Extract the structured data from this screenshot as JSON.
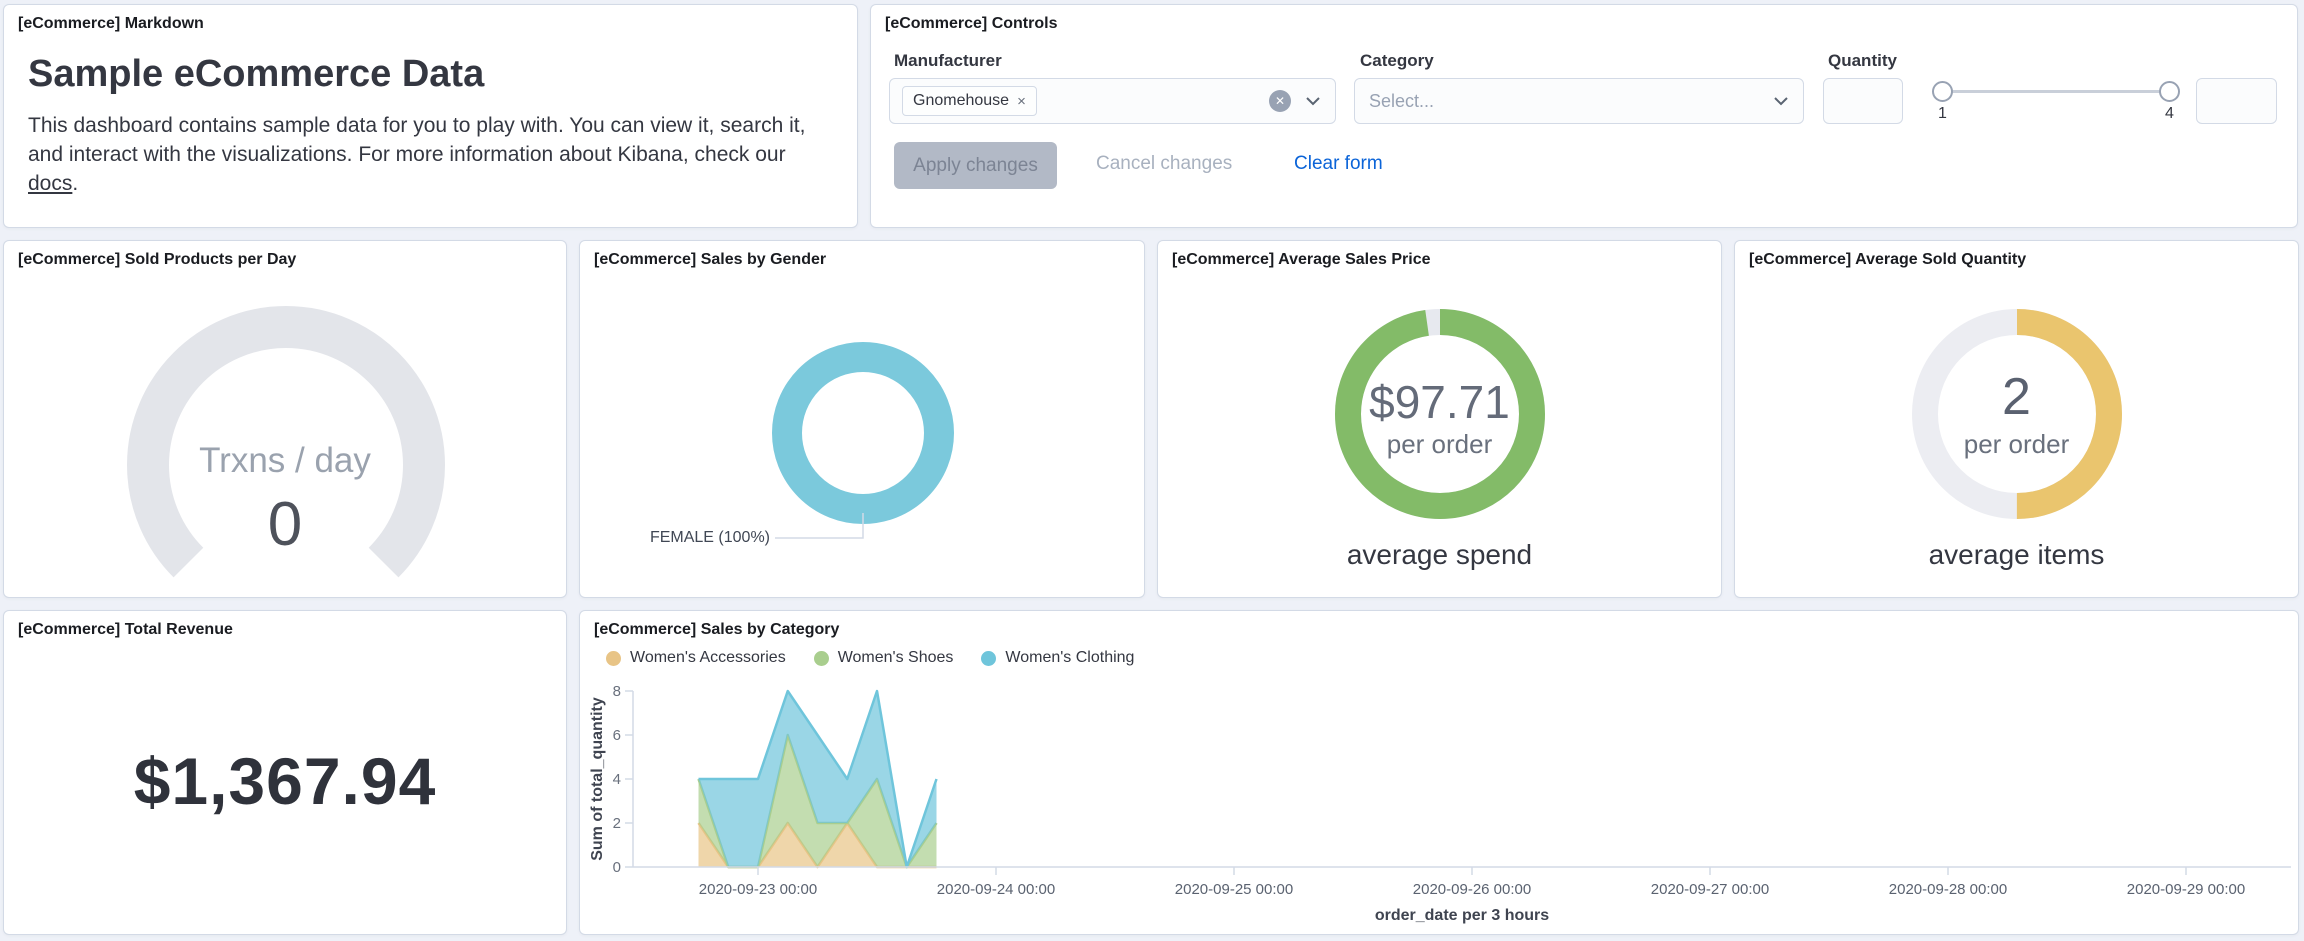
{
  "markdown": {
    "title": "[eCommerce] Markdown",
    "heading": "Sample eCommerce Data",
    "body_1": "This dashboard contains sample data for you to play with. You can view it, search it, and interact with the visualizations. For more information about Kibana, check our ",
    "link_text": "docs",
    "body_end": "."
  },
  "controls": {
    "title": "[eCommerce] Controls",
    "manufacturer": {
      "label": "Manufacturer",
      "selected": "Gnomehouse",
      "remove_icon": "×"
    },
    "category": {
      "label": "Category",
      "placeholder": "Select..."
    },
    "quantity": {
      "label": "Quantity",
      "min_label": "1",
      "max_label": "4",
      "left_value": "",
      "right_value": ""
    },
    "buttons": {
      "apply": "Apply changes",
      "cancel": "Cancel changes",
      "clear": "Clear form"
    }
  },
  "gauge": {
    "title": "[eCommerce] Sold Products per Day",
    "label": "Trxns / day",
    "value": "0",
    "arc_color": "#e3e5ea",
    "sweep_deg": 270
  },
  "gender": {
    "title": "[eCommerce] Sales by Gender",
    "slice_label": "FEMALE (100%)",
    "percent": 100,
    "color": "#7bc9dc"
  },
  "avg_price": {
    "title": "[eCommerce] Average Sales Price",
    "value": "$97.71",
    "unit": "per order",
    "caption": "average spend",
    "percent": 97.71,
    "color": "#83bb68",
    "track_color": "#e7e9ef"
  },
  "avg_qty": {
    "title": "[eCommerce] Average Sold Quantity",
    "value": "2",
    "unit": "per order",
    "caption": "average items",
    "percent": 50,
    "color": "#eac56e",
    "track_color": "#ecedf2"
  },
  "revenue": {
    "title": "[eCommerce] Total Revenue",
    "value": "$1,367.94"
  },
  "chart_data": {
    "type": "area",
    "stacked": true,
    "title": "[eCommerce] Sales by Category",
    "xlabel": "order_date per 3 hours",
    "ylabel": "Sum of total_quantity",
    "ylim": [
      0,
      8
    ],
    "yticks": [
      0,
      2,
      4,
      6,
      8
    ],
    "xticks": [
      "2020-09-23 00:00",
      "2020-09-24 00:00",
      "2020-09-25 00:00",
      "2020-09-26 00:00",
      "2020-09-27 00:00",
      "2020-09-28 00:00",
      "2020-09-29 00:00"
    ],
    "legend_position": "top",
    "grid": false,
    "x": [
      "2020-09-22 18:00",
      "2020-09-22 21:00",
      "2020-09-23 00:00",
      "2020-09-23 03:00",
      "2020-09-23 06:00",
      "2020-09-23 09:00",
      "2020-09-23 12:00",
      "2020-09-23 15:00",
      "2020-09-23 18:00"
    ],
    "series": [
      {
        "name": "Women's Accessories",
        "color": "#e8c486",
        "values": [
          2,
          0,
          0,
          2,
          0,
          2,
          0,
          0,
          0
        ]
      },
      {
        "name": "Women's Shoes",
        "color": "#a9ce8e",
        "values": [
          2,
          0,
          0,
          4,
          2,
          0,
          4,
          0,
          2
        ]
      },
      {
        "name": "Women's Clothing",
        "color": "#6fc5db",
        "values": [
          0,
          4,
          4,
          2,
          4,
          2,
          4,
          0,
          2
        ]
      }
    ]
  }
}
